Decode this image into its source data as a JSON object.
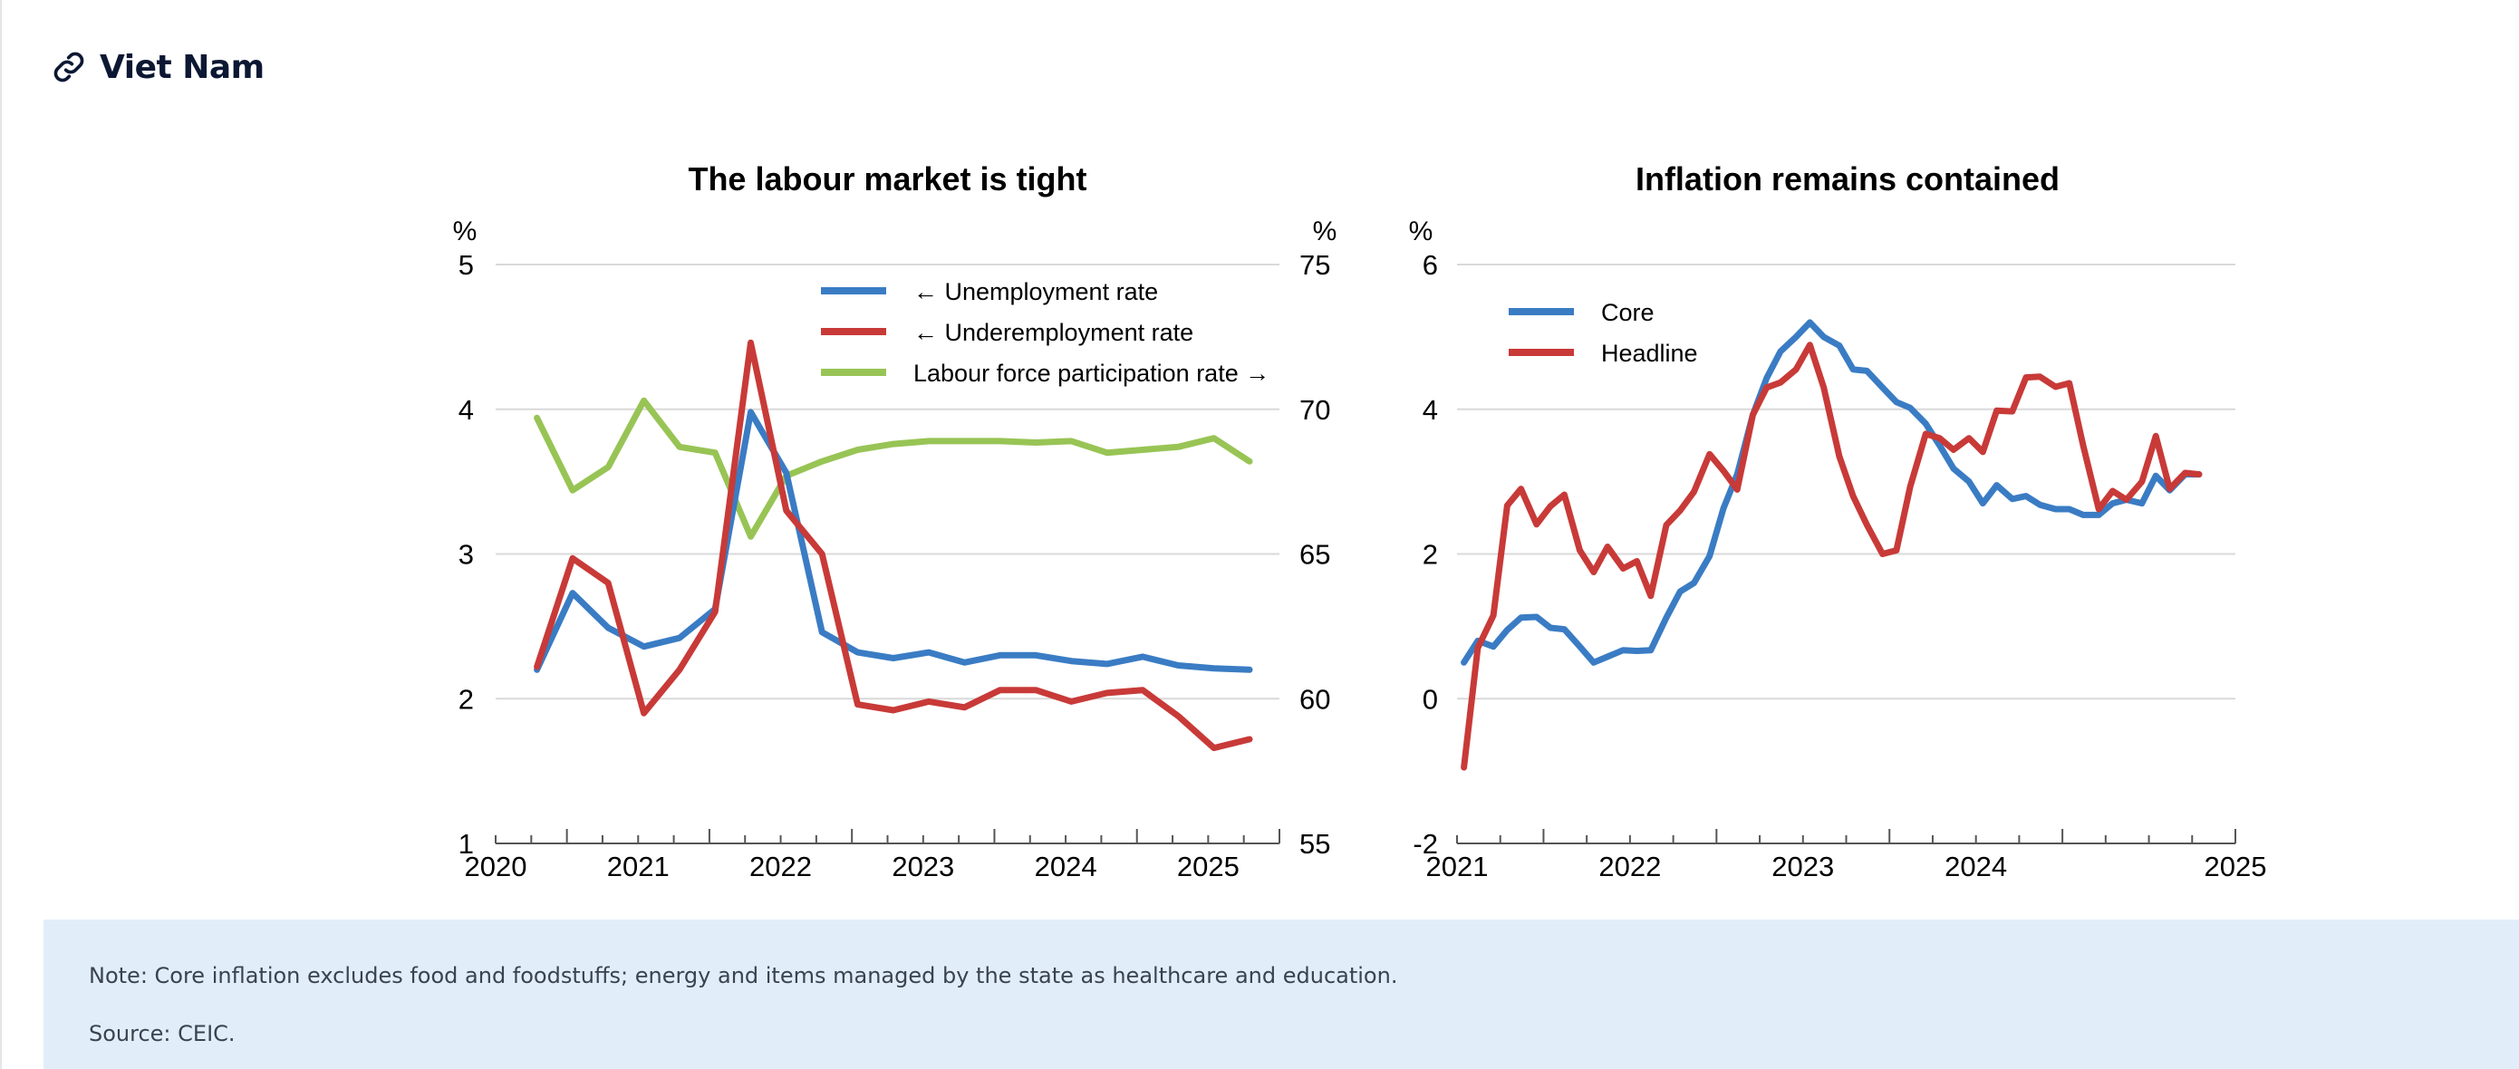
{
  "header": {
    "title": "Viet Nam",
    "icon": "link-icon"
  },
  "colors": {
    "blue": "#3a7cc4",
    "red": "#c83a38",
    "green": "#98c455",
    "grid": "#d9d9d9",
    "note_bg": "#e1eefa"
  },
  "chart_data": [
    {
      "type": "line",
      "title": "The labour market is tight",
      "ylabel_left": "%",
      "ylabel_right": "%",
      "ylim_left": [
        1,
        5
      ],
      "ylim_right": [
        55,
        75
      ],
      "yticks_left": [
        "5",
        "4",
        "3",
        "2",
        "1"
      ],
      "yticks_right": [
        "75",
        "70",
        "65",
        "60",
        "55"
      ],
      "xlim": [
        2019.5,
        2025
      ],
      "xticks": [
        "2020",
        "2021",
        "2022",
        "2023",
        "2024",
        "2025"
      ],
      "grid": true,
      "legend_position": "top-right",
      "series": [
        {
          "name": "← Unemployment rate",
          "axis": "left",
          "color": "#3a7cc4",
          "x": [
            2019.79,
            2020.04,
            2020.29,
            2020.54,
            2020.79,
            2021.04,
            2021.29,
            2021.54,
            2021.79,
            2022.04,
            2022.29,
            2022.54,
            2022.79,
            2023.04,
            2023.29,
            2023.54,
            2023.79,
            2024.04,
            2024.29,
            2024.54,
            2024.79
          ],
          "values": [
            2.2,
            2.73,
            2.49,
            2.36,
            2.42,
            2.62,
            3.98,
            3.56,
            2.46,
            2.32,
            2.28,
            2.32,
            2.25,
            2.3,
            2.3,
            2.26,
            2.24,
            2.29,
            2.23,
            2.21,
            2.2
          ]
        },
        {
          "name": "← Underemployment rate",
          "axis": "left",
          "color": "#c83a38",
          "x": [
            2019.79,
            2020.04,
            2020.29,
            2020.54,
            2020.79,
            2021.04,
            2021.29,
            2021.54,
            2021.79,
            2022.04,
            2022.29,
            2022.54,
            2022.79,
            2023.04,
            2023.29,
            2023.54,
            2023.79,
            2024.04,
            2024.29,
            2024.54,
            2024.79
          ],
          "values": [
            2.22,
            2.97,
            2.8,
            1.9,
            2.2,
            2.6,
            4.46,
            3.3,
            3.0,
            1.96,
            1.92,
            1.98,
            1.94,
            2.06,
            2.06,
            1.98,
            2.04,
            2.06,
            1.88,
            1.66,
            1.72
          ]
        },
        {
          "name": "Labour force participation rate →",
          "axis": "right",
          "color": "#98c455",
          "x": [
            2019.79,
            2020.04,
            2020.29,
            2020.54,
            2020.79,
            2021.04,
            2021.29,
            2021.54,
            2021.79,
            2022.04,
            2022.29,
            2022.54,
            2022.79,
            2023.04,
            2023.29,
            2023.54,
            2023.79,
            2024.04,
            2024.29,
            2024.54,
            2024.79
          ],
          "values": [
            69.7,
            67.2,
            68.0,
            70.3,
            68.7,
            68.5,
            65.6,
            67.7,
            68.2,
            68.6,
            68.8,
            68.9,
            68.9,
            68.9,
            68.85,
            68.9,
            68.5,
            68.6,
            68.7,
            69.0,
            68.2
          ]
        }
      ]
    },
    {
      "type": "line",
      "title": "Inflation remains contained",
      "ylabel": "%",
      "ylim": [
        -2,
        6
      ],
      "yticks": [
        "6",
        "4",
        "2",
        "0",
        "-2"
      ],
      "xlim": [
        2020.5,
        2025
      ],
      "xticks": [
        "2021",
        "2022",
        "2023",
        "2024",
        "2025"
      ],
      "grid": true,
      "legend_position": "top-left",
      "series": [
        {
          "name": "Core",
          "color": "#3a7cc4",
          "x": [
            2020.54,
            2020.62,
            2020.71,
            2020.79,
            2020.87,
            2020.96,
            2021.04,
            2021.12,
            2021.21,
            2021.29,
            2021.37,
            2021.46,
            2021.54,
            2021.62,
            2021.71,
            2021.79,
            2021.87,
            2021.96,
            2022.04,
            2022.12,
            2022.21,
            2022.29,
            2022.37,
            2022.46,
            2022.54,
            2022.62,
            2022.71,
            2022.79,
            2022.87,
            2022.96,
            2023.04,
            2023.12,
            2023.21,
            2023.29,
            2023.37,
            2023.46,
            2023.54,
            2023.62,
            2023.71,
            2023.79,
            2023.87,
            2023.96,
            2024.04,
            2024.12,
            2024.21,
            2024.29,
            2024.37,
            2024.46,
            2024.54,
            2024.62,
            2024.71,
            2024.79
          ],
          "values": [
            0.5,
            0.8,
            0.72,
            0.95,
            1.12,
            1.13,
            0.98,
            0.96,
            0.72,
            0.5,
            0.58,
            0.67,
            0.66,
            0.67,
            1.12,
            1.48,
            1.6,
            1.97,
            2.63,
            3.1,
            3.92,
            4.43,
            4.8,
            5.0,
            5.2,
            5.0,
            4.88,
            4.55,
            4.53,
            4.3,
            4.1,
            4.02,
            3.8,
            3.5,
            3.18,
            3.0,
            2.7,
            2.95,
            2.76,
            2.8,
            2.68,
            2.62,
            2.62,
            2.54,
            2.54,
            2.7,
            2.75,
            2.7,
            3.08,
            2.88,
            3.1,
            3.1
          ]
        },
        {
          "name": "Headline",
          "color": "#c83a38",
          "x": [
            2020.54,
            2020.62,
            2020.71,
            2020.79,
            2020.87,
            2020.96,
            2021.04,
            2021.12,
            2021.21,
            2021.29,
            2021.37,
            2021.46,
            2021.54,
            2021.62,
            2021.71,
            2021.79,
            2021.87,
            2021.96,
            2022.04,
            2022.12,
            2022.21,
            2022.29,
            2022.37,
            2022.46,
            2022.54,
            2022.62,
            2022.71,
            2022.79,
            2022.87,
            2022.96,
            2023.04,
            2023.12,
            2023.21,
            2023.29,
            2023.37,
            2023.46,
            2023.54,
            2023.62,
            2023.71,
            2023.79,
            2023.87,
            2023.96,
            2024.04,
            2024.12,
            2024.21,
            2024.29,
            2024.37,
            2024.46,
            2024.54,
            2024.62,
            2024.71,
            2024.79
          ],
          "values": [
            -0.95,
            0.7,
            1.15,
            2.67,
            2.9,
            2.41,
            2.66,
            2.82,
            2.05,
            1.75,
            2.1,
            1.8,
            1.9,
            1.42,
            2.4,
            2.6,
            2.86,
            3.38,
            3.15,
            2.89,
            3.92,
            4.3,
            4.37,
            4.55,
            4.89,
            4.3,
            3.35,
            2.8,
            2.4,
            2.0,
            2.05,
            2.93,
            3.66,
            3.6,
            3.44,
            3.6,
            3.41,
            3.98,
            3.97,
            4.44,
            4.45,
            4.31,
            4.36,
            3.5,
            2.62,
            2.87,
            2.75,
            3.0,
            3.63,
            2.9,
            3.12,
            3.1
          ]
        }
      ]
    }
  ],
  "note": {
    "text": "Note: Core inflation excludes food and foodstuffs; energy and items managed by the state as healthcare and education.",
    "source": "Source: CEIC."
  }
}
